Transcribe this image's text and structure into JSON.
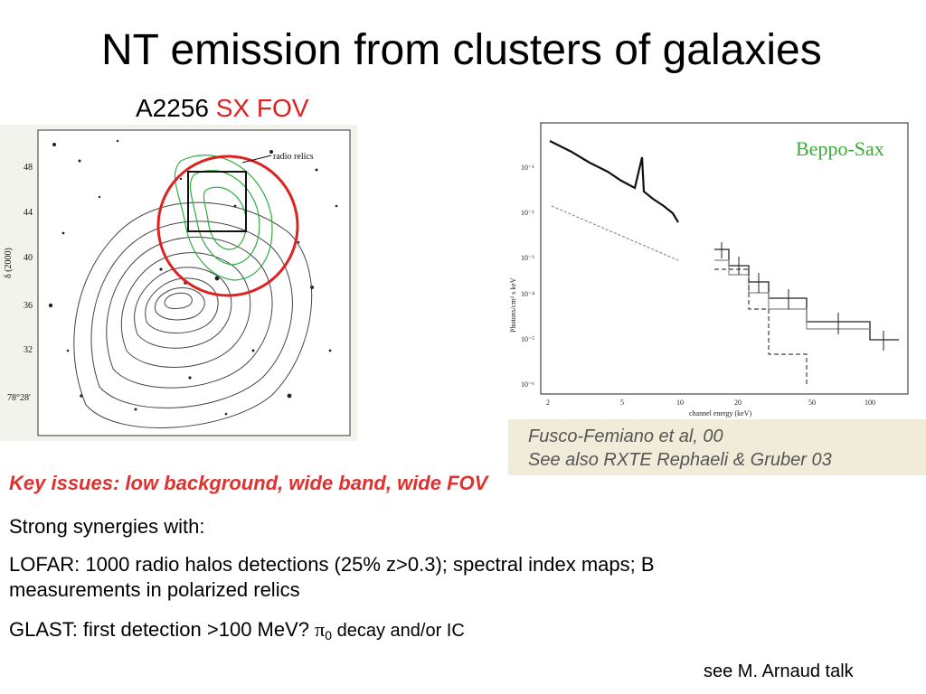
{
  "slide": {
    "title": "NT emission from clusters of galaxies",
    "subtitle_prefix": "A2256",
    "subtitle_highlight": "SX FOV",
    "left_figure": {
      "contour_label": "radio relics",
      "y_ticks": [
        "48",
        "44",
        "40",
        "36",
        "32",
        "78°28'"
      ],
      "axis_label": "δ (2000)"
    },
    "right_figure": {
      "label": "Beppo-Sax",
      "x_ticks": [
        "2",
        "5",
        "10",
        "20",
        "50",
        "100"
      ],
      "x_label": "channel energy (keV)",
      "y_label": "Photons/cm² s keV",
      "y_ticks": [
        "10⁻¹",
        "10⁻²",
        "10⁻³",
        "10⁻⁴",
        "10⁻⁵",
        "10⁻⁶"
      ],
      "caption_line1": "Fusco-Femiano et al, 00",
      "caption_line2": "See also RXTE Rephaeli & Gruber 03"
    },
    "key_issues": "Key issues: low background, wide band, wide FOV",
    "synergies": "Strong synergies with:",
    "lofar_line1": "LOFAR: 1000 radio halos detections (25% z>0.3); spectral index maps; B",
    "lofar_line2": "measurements in polarized relics",
    "glast_prefix": "GLAST: first detection >100 MeV? ",
    "glast_pi": "π",
    "glast_sub": "0",
    "glast_suffix": " decay and/or IC",
    "reference": "see M. Arnaud talk"
  }
}
